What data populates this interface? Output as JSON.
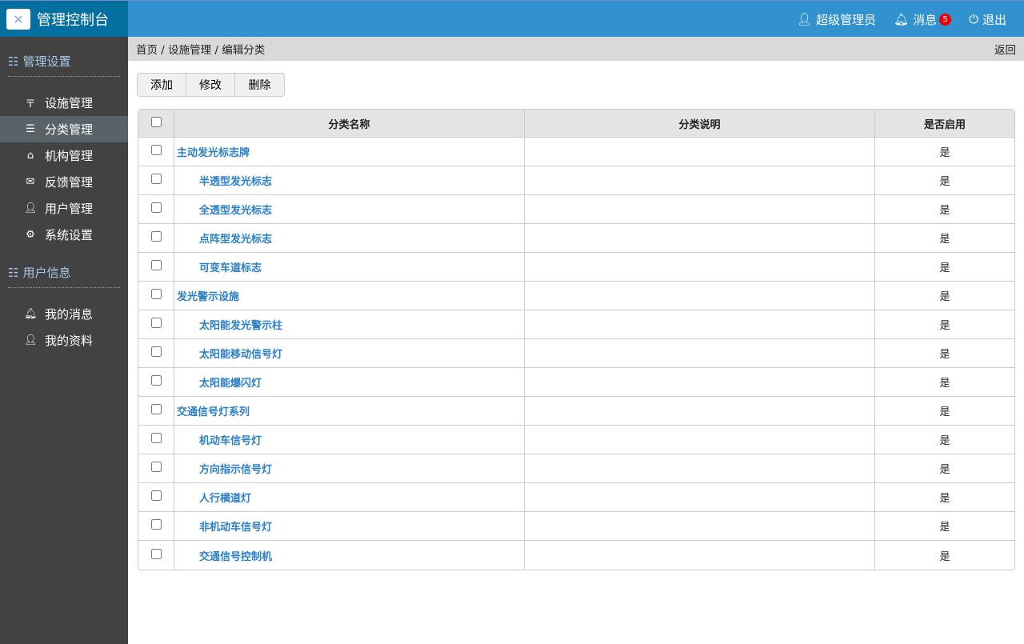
{
  "header": {
    "title": "管理控制台",
    "user": "超级管理员",
    "messages": "消息",
    "message_count": "5",
    "logout": "退出"
  },
  "sidebar": {
    "sections": [
      {
        "title": "管理设置",
        "items": [
          {
            "label": "设施管理",
            "icon": "filter-icon"
          },
          {
            "label": "分类管理",
            "icon": "indent-icon",
            "active": true
          },
          {
            "label": "机构管理",
            "icon": "home-icon"
          },
          {
            "label": "反馈管理",
            "icon": "envelope-icon"
          },
          {
            "label": "用户管理",
            "icon": "user-icon"
          },
          {
            "label": "系统设置",
            "icon": "gear-icon"
          }
        ]
      },
      {
        "title": "用户信息",
        "items": [
          {
            "label": "我的消息",
            "icon": "bell-icon"
          },
          {
            "label": "我的资料",
            "icon": "user-icon"
          }
        ]
      }
    ]
  },
  "breadcrumb": {
    "text": "首页 / 设施管理 / 编辑分类",
    "back": "返回"
  },
  "toolbar": {
    "add": "添加",
    "edit": "修改",
    "delete": "删除"
  },
  "table": {
    "headers": [
      "分类名称",
      "分类说明",
      "是否启用"
    ],
    "rows": [
      {
        "name": "主动发光标志牌",
        "desc": "",
        "enabled": "是",
        "child": false
      },
      {
        "name": "半透型发光标志",
        "desc": "",
        "enabled": "是",
        "child": true
      },
      {
        "name": "全透型发光标志",
        "desc": "",
        "enabled": "是",
        "child": true
      },
      {
        "name": "点阵型发光标志",
        "desc": "",
        "enabled": "是",
        "child": true
      },
      {
        "name": "可变车道标志",
        "desc": "",
        "enabled": "是",
        "child": true
      },
      {
        "name": "发光警示设施",
        "desc": "",
        "enabled": "是",
        "child": false
      },
      {
        "name": "太阳能发光警示柱",
        "desc": "",
        "enabled": "是",
        "child": true
      },
      {
        "name": "太阳能移动信号灯",
        "desc": "",
        "enabled": "是",
        "child": true
      },
      {
        "name": "太阳能爆闪灯",
        "desc": "",
        "enabled": "是",
        "child": true
      },
      {
        "name": "交通信号灯系列",
        "desc": "",
        "enabled": "是",
        "child": false
      },
      {
        "name": "机动车信号灯",
        "desc": "",
        "enabled": "是",
        "child": true
      },
      {
        "name": "方向指示信号灯",
        "desc": "",
        "enabled": "是",
        "child": true
      },
      {
        "name": "人行横道灯",
        "desc": "",
        "enabled": "是",
        "child": true
      },
      {
        "name": "非机动车信号灯",
        "desc": "",
        "enabled": "是",
        "child": true
      },
      {
        "name": "交通信号控制机",
        "desc": "",
        "enabled": "是",
        "child": true
      }
    ]
  }
}
